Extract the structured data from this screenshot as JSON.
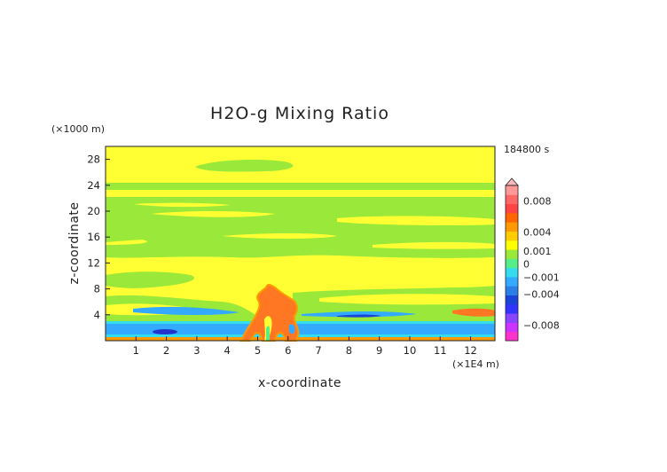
{
  "chart_data": {
    "type": "heatmap",
    "title": "H2O-g Mixing Ratio",
    "time_label": "184800 s",
    "xlabel": "x-coordinate",
    "ylabel": "z-coordinate",
    "x_unit": "(×1E4 m)",
    "y_unit": "(×1000 m)",
    "xlim": [
      0,
      12.8
    ],
    "ylim": [
      0,
      30
    ],
    "x_ticks": [
      "1",
      "2",
      "3",
      "4",
      "5",
      "6",
      "7",
      "8",
      "9",
      "10",
      "11",
      "12"
    ],
    "y_ticks": [
      "4",
      "8",
      "12",
      "16",
      "20",
      "24",
      "28"
    ],
    "colorbar": {
      "range": [
        -0.01,
        0.01
      ],
      "labels": [
        {
          "text": "0.008",
          "value": 0.008
        },
        {
          "text": "0.004",
          "value": 0.004
        },
        {
          "text": "0.001",
          "value": 0.001
        },
        {
          "text": "0",
          "value": 0.0
        },
        {
          "text": "−0.001",
          "value": -0.001
        },
        {
          "text": "−0.004",
          "value": -0.004
        },
        {
          "text": "−0.008",
          "value": -0.008
        }
      ],
      "colors": [
        "#ff33cc",
        "#cc33ff",
        "#8844ff",
        "#3333ff",
        "#1a44d8",
        "#2a7fe6",
        "#33aaff",
        "#33ddee",
        "#55ee88",
        "#99e83a",
        "#ffff00",
        "#ffcc00",
        "#ff9900",
        "#ff6600",
        "#ff4444",
        "#ff6666",
        "#ff9999"
      ]
    },
    "regions": [
      {
        "name": "background",
        "value": 0.0,
        "color": "#ffff33"
      },
      {
        "name": "upper-green-bands",
        "value": -0.0005,
        "color": "#99e83a"
      },
      {
        "name": "low-level-blue-layer",
        "value": -0.003,
        "color": "#33aaff"
      },
      {
        "name": "central-orange-plume",
        "value": 0.004,
        "color": "#ff7722"
      }
    ]
  }
}
